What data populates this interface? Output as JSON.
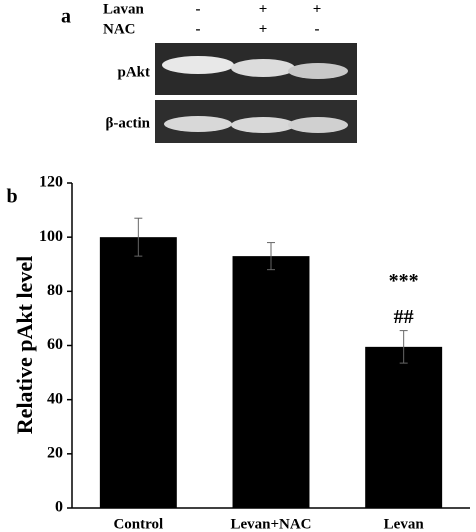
{
  "blot": {
    "panel_label": "a",
    "rows": [
      {
        "label": "Lavan",
        "signs": [
          "-",
          "+",
          "+"
        ]
      },
      {
        "label": "NAC",
        "signs": [
          "-",
          "+",
          "-"
        ]
      }
    ],
    "bands": [
      "pAkt",
      "β-actin"
    ]
  },
  "chart_data": {
    "type": "bar",
    "panel_label": "b",
    "ylabel": "Relative pAkt level",
    "categories": [
      "Control",
      "Levan+NAC",
      "Levan"
    ],
    "values": [
      100,
      93,
      59.5
    ],
    "errors": [
      7,
      5,
      6
    ],
    "color": "#000000",
    "ylim": [
      0,
      120
    ],
    "yticks": [
      0,
      20,
      40,
      60,
      80,
      100,
      120
    ],
    "annotations": [
      {
        "text": "***",
        "category": "Levan"
      },
      {
        "text": "##",
        "category": "Levan"
      }
    ]
  }
}
